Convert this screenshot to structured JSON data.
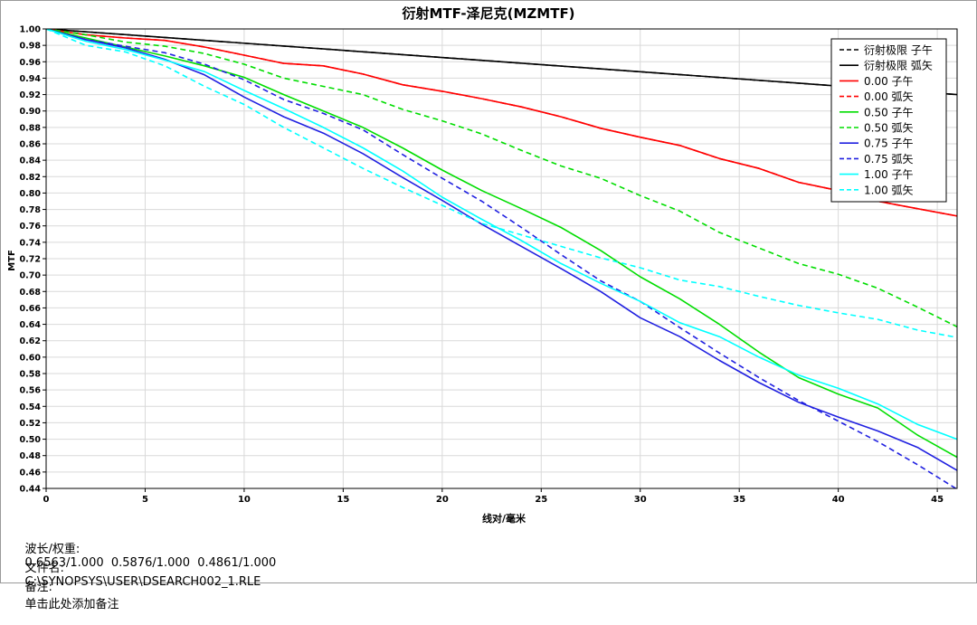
{
  "chart_data": {
    "type": "line",
    "title": "衍射MTF-泽尼克(MZMTF)",
    "xlabel": "线对/毫米",
    "ylabel": "MTF",
    "xlim": [
      0,
      46
    ],
    "ylim": [
      0.44,
      1.0
    ],
    "x_ticks": [
      0,
      5,
      10,
      15,
      20,
      25,
      30,
      35,
      40,
      45
    ],
    "y_ticks": [
      1.0,
      0.98,
      0.96,
      0.94,
      0.92,
      0.9,
      0.88,
      0.86,
      0.84,
      0.82,
      0.8,
      0.78,
      0.76,
      0.74,
      0.72,
      0.7,
      0.68,
      0.66,
      0.64,
      0.62,
      0.6,
      0.58,
      0.56,
      0.54,
      0.52,
      0.5,
      0.48,
      0.46,
      0.44
    ],
    "grid": true,
    "legend_position": "top-right",
    "series": [
      {
        "name": "衍射极限 子午",
        "color": "#000000",
        "dash": true,
        "x": [
          0,
          46
        ],
        "y": [
          1.0,
          0.92
        ]
      },
      {
        "name": "衍射极限 弧矢",
        "color": "#000000",
        "dash": false,
        "x": [
          0,
          46
        ],
        "y": [
          1.0,
          0.92
        ]
      },
      {
        "name": "0.00 子午",
        "color": "#ff0000",
        "dash": false,
        "x": [
          0,
          2,
          4,
          6,
          8,
          10,
          12,
          14,
          16,
          18,
          20,
          22,
          24,
          26,
          28,
          30,
          32,
          34,
          36,
          38,
          40,
          42,
          44,
          46
        ],
        "y": [
          1.0,
          0.993,
          0.989,
          0.986,
          0.978,
          0.968,
          0.958,
          0.955,
          0.945,
          0.932,
          0.924,
          0.915,
          0.905,
          0.893,
          0.879,
          0.868,
          0.858,
          0.842,
          0.83,
          0.813,
          0.803,
          0.79,
          0.781,
          0.772
        ]
      },
      {
        "name": "0.00 弧矢",
        "color": "#ff0000",
        "dash": true,
        "x": [
          0,
          2,
          4,
          6,
          8,
          10,
          12,
          14,
          16,
          18,
          20,
          22,
          24,
          26,
          28,
          30,
          32,
          34,
          36,
          38,
          40,
          42,
          44,
          46
        ],
        "y": [
          1.0,
          0.993,
          0.989,
          0.986,
          0.978,
          0.968,
          0.958,
          0.955,
          0.945,
          0.932,
          0.924,
          0.915,
          0.905,
          0.893,
          0.879,
          0.868,
          0.858,
          0.842,
          0.83,
          0.813,
          0.803,
          0.79,
          0.781,
          0.772
        ]
      },
      {
        "name": "0.50 子午",
        "color": "#00dd00",
        "dash": false,
        "x": [
          0,
          2,
          4,
          6,
          8,
          10,
          12,
          14,
          16,
          18,
          20,
          22,
          24,
          26,
          28,
          30,
          32,
          34,
          36,
          38,
          40,
          42,
          44,
          46
        ],
        "y": [
          1.0,
          0.989,
          0.978,
          0.967,
          0.955,
          0.941,
          0.92,
          0.9,
          0.88,
          0.855,
          0.828,
          0.803,
          0.781,
          0.758,
          0.73,
          0.698,
          0.671,
          0.64,
          0.606,
          0.575,
          0.555,
          0.538,
          0.505,
          0.478
        ]
      },
      {
        "name": "0.50 弧矢",
        "color": "#00dd00",
        "dash": true,
        "x": [
          0,
          2,
          4,
          6,
          8,
          10,
          12,
          14,
          16,
          18,
          20,
          22,
          24,
          26,
          28,
          30,
          32,
          34,
          36,
          38,
          40,
          42,
          44,
          46
        ],
        "y": [
          1.0,
          0.993,
          0.984,
          0.979,
          0.97,
          0.957,
          0.94,
          0.93,
          0.92,
          0.902,
          0.888,
          0.872,
          0.852,
          0.833,
          0.818,
          0.797,
          0.778,
          0.752,
          0.733,
          0.714,
          0.701,
          0.684,
          0.661,
          0.637
        ]
      },
      {
        "name": "0.75 子午",
        "color": "#2020e0",
        "dash": false,
        "x": [
          0,
          2,
          4,
          6,
          8,
          10,
          12,
          14,
          16,
          18,
          20,
          22,
          24,
          26,
          28,
          30,
          32,
          34,
          36,
          38,
          40,
          42,
          44,
          46
        ],
        "y": [
          1.0,
          0.987,
          0.977,
          0.963,
          0.944,
          0.917,
          0.893,
          0.873,
          0.848,
          0.819,
          0.791,
          0.762,
          0.735,
          0.708,
          0.68,
          0.648,
          0.625,
          0.596,
          0.569,
          0.545,
          0.527,
          0.51,
          0.49,
          0.462
        ]
      },
      {
        "name": "0.75 弧矢",
        "color": "#2020e0",
        "dash": true,
        "x": [
          0,
          2,
          4,
          6,
          8,
          10,
          12,
          14,
          16,
          18,
          20,
          22,
          24,
          26,
          28,
          30,
          32,
          34,
          36,
          38,
          40,
          42,
          44,
          46
        ],
        "y": [
          1.0,
          0.987,
          0.979,
          0.971,
          0.957,
          0.938,
          0.914,
          0.897,
          0.877,
          0.847,
          0.818,
          0.79,
          0.758,
          0.725,
          0.693,
          0.668,
          0.636,
          0.605,
          0.575,
          0.547,
          0.522,
          0.497,
          0.469,
          0.439
        ]
      },
      {
        "name": "1.00 子午",
        "color": "#00ffff",
        "dash": false,
        "x": [
          0,
          2,
          4,
          6,
          8,
          10,
          12,
          14,
          16,
          18,
          20,
          22,
          24,
          26,
          28,
          30,
          32,
          34,
          36,
          38,
          40,
          42,
          44,
          46
        ],
        "y": [
          1.0,
          0.985,
          0.975,
          0.962,
          0.948,
          0.925,
          0.903,
          0.88,
          0.855,
          0.827,
          0.795,
          0.768,
          0.742,
          0.714,
          0.69,
          0.668,
          0.642,
          0.625,
          0.6,
          0.578,
          0.562,
          0.543,
          0.518,
          0.5
        ]
      },
      {
        "name": "1.00 弧矢",
        "color": "#00ffff",
        "dash": true,
        "x": [
          0,
          2,
          4,
          6,
          8,
          10,
          12,
          14,
          16,
          18,
          20,
          22,
          24,
          26,
          28,
          30,
          32,
          34,
          36,
          38,
          40,
          42,
          44,
          46
        ],
        "y": [
          1.0,
          0.98,
          0.972,
          0.955,
          0.93,
          0.908,
          0.88,
          0.855,
          0.83,
          0.807,
          0.785,
          0.763,
          0.749,
          0.735,
          0.721,
          0.709,
          0.694,
          0.686,
          0.674,
          0.663,
          0.654,
          0.646,
          0.633,
          0.624
        ]
      }
    ]
  },
  "info": {
    "wavelength_label": "波长/权重:",
    "wavelength_value": "0.6563/1.000  0.5876/1.000  0.4861/1.000",
    "file_label": "文件名:",
    "file_value": "C:\\SYNOPSYS\\USER\\DSEARCH002_1.RLE",
    "note_label": "备注:",
    "note_value": "单击此处添加备注"
  }
}
